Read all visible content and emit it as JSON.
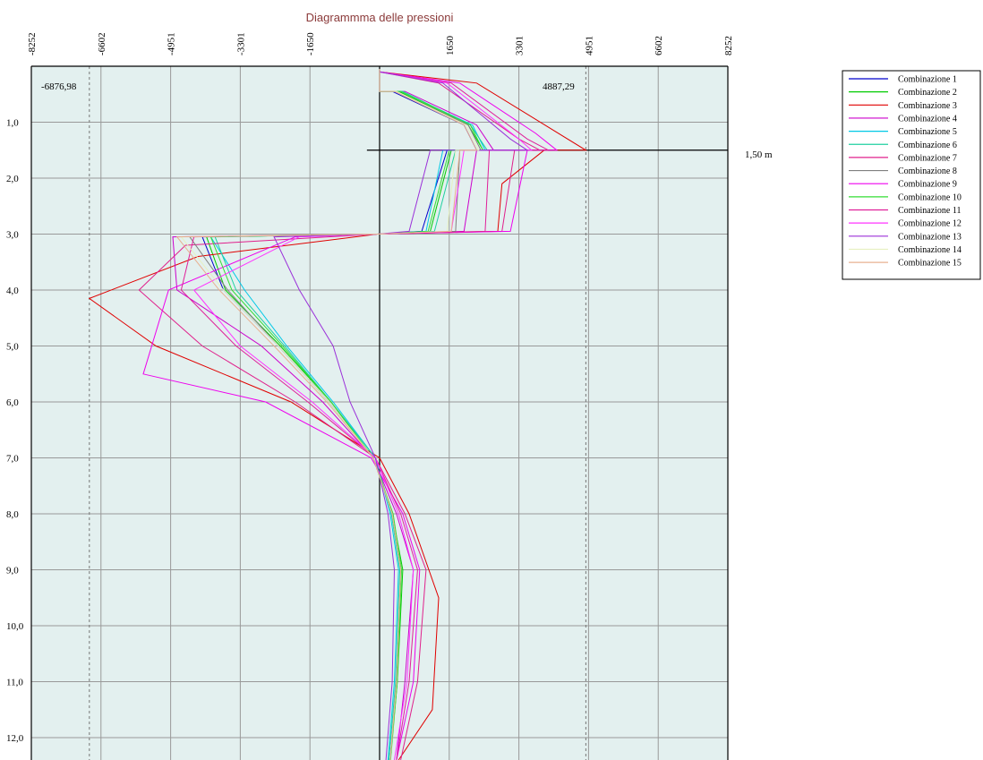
{
  "chart_data": {
    "type": "line",
    "title": "Diagrammma delle pressioni",
    "xlabel": "",
    "ylabel": "",
    "x_ticks": [
      "-8252",
      "-6602",
      "-4951",
      "-3301",
      "-1650",
      "1650",
      "3301",
      "4951",
      "6602",
      "8252"
    ],
    "x_tick_values": [
      -8252,
      -6602,
      -4951,
      -3301,
      -1650,
      1650,
      3301,
      4951,
      6602,
      8252
    ],
    "y_ticks": [
      "1,0",
      "2,0",
      "3,0",
      "4,0",
      "5,0",
      "6,0",
      "7,0",
      "8,0",
      "9,0",
      "10,0",
      "11,0",
      "12,0"
    ],
    "y_tick_values": [
      1,
      2,
      3,
      4,
      5,
      6,
      7,
      8,
      9,
      10,
      11,
      12
    ],
    "xlim": [
      -8252,
      8252
    ],
    "ylim": [
      0,
      12.4
    ],
    "y_inverted": true,
    "grid": true,
    "legend_position": "right",
    "annotations": {
      "min_label": "-6876,98",
      "min_value": -6876.98,
      "max_label": "4887,29",
      "max_value": 4887.29,
      "level_label": "1,50 m",
      "level_depth": 1.5
    },
    "series": [
      {
        "name": "Combinazione 1",
        "color": "#0000cc",
        "x": [
          0,
          0,
          300,
          2000,
          2300,
          1600,
          1000,
          -50,
          -4200,
          -3700,
          -2400,
          -1200,
          -150,
          300,
          500,
          400,
          250
        ],
        "y": [
          0.05,
          0.45,
          0.45,
          1.05,
          1.5,
          1.5,
          2.95,
          3.0,
          3.05,
          4.0,
          5.0,
          6.0,
          7.0,
          8.0,
          9.0,
          11.0,
          12.4
        ]
      },
      {
        "name": "Combinazione 2",
        "color": "#00cc00",
        "x": [
          0,
          0,
          450,
          2100,
          2450,
          1700,
          1200,
          -50,
          -4100,
          -3650,
          -2350,
          -1150,
          -150,
          300,
          550,
          420,
          250
        ],
        "y": [
          0.05,
          0.45,
          0.45,
          1.05,
          1.5,
          1.5,
          2.95,
          3.0,
          3.05,
          4.0,
          5.0,
          6.0,
          7.0,
          8.0,
          9.0,
          11.0,
          12.4
        ]
      },
      {
        "name": "Combinazione 3",
        "color": "#e00000",
        "x": [
          0,
          0,
          2300,
          4887.29,
          3900,
          2900,
          2800,
          -50,
          -4300,
          -6876.98,
          -5300,
          -2100,
          0,
          700,
          1400,
          1250,
          450
        ],
        "y": [
          0.05,
          0.1,
          0.3,
          1.5,
          1.5,
          2.1,
          2.95,
          3.0,
          3.4,
          4.15,
          5.0,
          6.0,
          7.0,
          8.0,
          9.5,
          11.5,
          12.4
        ]
      },
      {
        "name": "Combinazione 4",
        "color": "#cc00cc",
        "x": [
          0,
          0,
          600,
          2300,
          2700,
          2300,
          2000,
          -50,
          -4900,
          -4800,
          -2800,
          -1350,
          -150,
          400,
          800,
          600,
          400
        ],
        "y": [
          0.05,
          0.45,
          0.45,
          1.05,
          1.5,
          1.5,
          2.95,
          3.0,
          3.05,
          4.0,
          5.0,
          6.0,
          7.0,
          8.0,
          9.0,
          11.0,
          12.4
        ]
      },
      {
        "name": "Combinazione 5",
        "color": "#00c8e6",
        "x": [
          0,
          0,
          500,
          2200,
          2500,
          1500,
          1100,
          -50,
          -4000,
          -3200,
          -2200,
          -1100,
          -100,
          250,
          450,
          350,
          200
        ],
        "y": [
          0.05,
          0.45,
          0.45,
          1.05,
          1.5,
          1.5,
          2.95,
          3.0,
          3.05,
          4.0,
          5.0,
          6.0,
          7.0,
          8.0,
          9.0,
          11.0,
          12.4
        ]
      },
      {
        "name": "Combinazione 6",
        "color": "#20d0a0",
        "x": [
          0,
          0,
          550,
          2150,
          2550,
          1800,
          1300,
          -50,
          -3900,
          -3400,
          -2250,
          -1150,
          -100,
          280,
          480,
          380,
          220
        ],
        "y": [
          0.05,
          0.45,
          0.45,
          1.05,
          1.5,
          1.5,
          2.95,
          3.0,
          3.05,
          4.0,
          5.0,
          6.0,
          7.0,
          8.0,
          9.0,
          11.0,
          12.4
        ]
      },
      {
        "name": "Combinazione 7",
        "color": "#e0208c",
        "x": [
          0,
          0,
          1400,
          3300,
          3800,
          3200,
          2900,
          -50,
          -4600,
          -5700,
          -4200,
          -2000,
          -100,
          600,
          1100,
          900,
          500
        ],
        "y": [
          0.05,
          0.1,
          0.3,
          1.3,
          1.5,
          1.5,
          2.95,
          3.0,
          3.2,
          4.0,
          5.0,
          6.0,
          7.0,
          8.0,
          9.0,
          11.0,
          12.4
        ]
      },
      {
        "name": "Combinazione 8",
        "color": "#808080",
        "x": [
          0,
          0,
          400,
          2100,
          2400,
          1900,
          1800,
          -50,
          -4500,
          -3600,
          -2400,
          -1200,
          -150,
          300,
          500,
          400,
          250
        ],
        "y": [
          0.05,
          0.45,
          0.45,
          1.05,
          1.5,
          1.5,
          2.95,
          3.0,
          3.05,
          4.0,
          5.0,
          6.0,
          7.0,
          8.0,
          9.0,
          11.0,
          12.4
        ]
      },
      {
        "name": "Combinazione 9",
        "color": "#ee00ee",
        "x": [
          0,
          0,
          1900,
          3700,
          4200,
          3500,
          3100,
          -50,
          -2000,
          -5000,
          -5600,
          -2700,
          -200,
          550,
          950,
          800,
          400
        ],
        "y": [
          0.05,
          0.1,
          0.3,
          1.2,
          1.5,
          1.5,
          2.95,
          3.0,
          3.05,
          4.0,
          5.5,
          6.0,
          7.0,
          8.0,
          9.0,
          11.0,
          12.4
        ]
      },
      {
        "name": "Combinazione 10",
        "color": "#33dd33",
        "x": [
          0,
          0,
          500,
          2150,
          2450,
          1650,
          1150,
          -50,
          -4000,
          -3500,
          -2300,
          -1150,
          -150,
          320,
          520,
          420,
          260
        ],
        "y": [
          0.05,
          0.45,
          0.45,
          1.05,
          1.5,
          1.5,
          2.95,
          3.0,
          3.05,
          4.0,
          5.0,
          6.0,
          7.0,
          8.0,
          9.0,
          11.0,
          12.4
        ]
      },
      {
        "name": "Combinazione 11",
        "color": "#e0209a",
        "x": [
          0,
          0,
          1700,
          3500,
          4000,
          2600,
          2500,
          -50,
          -4400,
          -4700,
          -3400,
          -1700,
          -100,
          500,
          900,
          700,
          400
        ],
        "y": [
          0.05,
          0.1,
          0.3,
          1.3,
          1.5,
          1.5,
          2.95,
          3.0,
          3.05,
          4.0,
          5.0,
          6.0,
          7.0,
          8.0,
          9.0,
          11.0,
          12.4
        ]
      },
      {
        "name": "Combinazione 12",
        "color": "#ff33ff",
        "x": [
          0,
          0,
          1600,
          3300,
          3600,
          2000,
          1700,
          -50,
          -1900,
          -4400,
          -3300,
          -1600,
          -100,
          450,
          800,
          650,
          350
        ],
        "y": [
          0.05,
          0.1,
          0.3,
          1.3,
          1.5,
          1.5,
          2.95,
          3.0,
          3.05,
          4.0,
          5.0,
          6.0,
          7.0,
          8.0,
          9.0,
          11.0,
          12.4
        ]
      },
      {
        "name": "Combinazione 13",
        "color": "#9b30d9",
        "x": [
          0,
          0,
          1500,
          3100,
          3500,
          1200,
          700,
          -50,
          -2500,
          -1900,
          -1100,
          -700,
          -100,
          200,
          350,
          300,
          150
        ],
        "y": [
          0.05,
          0.1,
          0.3,
          1.3,
          1.5,
          1.5,
          2.95,
          3.0,
          3.05,
          4.0,
          5.0,
          6.0,
          7.0,
          8.0,
          9.0,
          11.0,
          12.4
        ]
      },
      {
        "name": "Combinazione 14",
        "color": "#e6f0c0",
        "x": [
          0,
          0,
          400,
          2050,
          2350,
          1800,
          1600,
          -50,
          -4700,
          -3700,
          -2400,
          -1200,
          -150,
          300,
          500,
          400,
          250
        ],
        "y": [
          0.05,
          0.45,
          0.45,
          1.05,
          1.5,
          1.5,
          2.95,
          3.0,
          3.05,
          4.0,
          5.0,
          6.0,
          7.0,
          8.0,
          9.0,
          11.0,
          12.4
        ]
      },
      {
        "name": "Combinazione 15",
        "color": "#e8b090",
        "x": [
          0,
          0,
          350,
          2000,
          2300,
          1900,
          1700,
          -50,
          -4800,
          -3800,
          -2500,
          -1250,
          -150,
          300,
          500,
          400,
          250
        ],
        "y": [
          0.05,
          0.45,
          0.45,
          1.05,
          1.5,
          1.5,
          2.95,
          3.0,
          3.05,
          4.0,
          5.0,
          6.0,
          7.0,
          8.0,
          9.0,
          11.0,
          12.4
        ]
      }
    ]
  },
  "colors": {
    "plot_background": "#e3f0ef",
    "grid": "#999999",
    "title": "#8b3a3a"
  }
}
